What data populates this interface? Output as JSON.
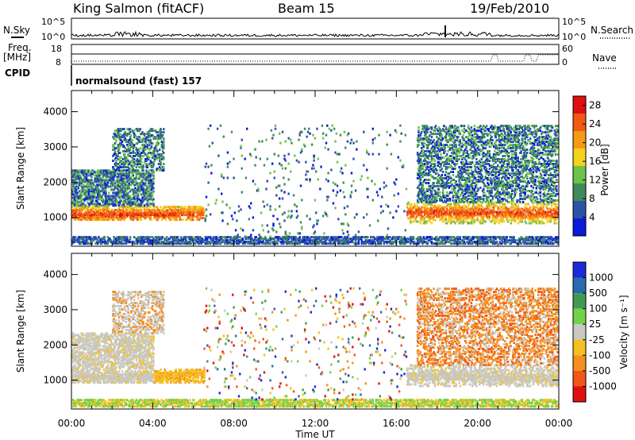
{
  "header": {
    "station": "King Salmon (fitACF)",
    "beam": "Beam 15",
    "date": "19/Feb/2010"
  },
  "strip_panels": {
    "nsky": {
      "label": "N.Sky",
      "ticks": [
        "10^5",
        "10^0"
      ]
    },
    "nsearch": {
      "label": "N.Search",
      "ticks": [
        "10^5",
        "10^0"
      ]
    },
    "freq": {
      "label_line1": "Freq.",
      "label_line2": "[MHz]",
      "ticks": [
        "18",
        "8"
      ]
    },
    "nave": {
      "label": "Nave",
      "ticks": [
        "60",
        "0"
      ]
    },
    "cpid": {
      "label": "CPID",
      "value": "normalsound (fast) 157"
    }
  },
  "chart_data": [
    {
      "type": "heatmap",
      "name": "power",
      "ylabel": "Slant Range [km]",
      "xlabel": "",
      "xlim": [
        "00:00",
        "00:00"
      ],
      "ylim": [
        180,
        4600
      ],
      "x_ticks": [
        "00:00",
        "04:00",
        "08:00",
        "12:00",
        "16:00",
        "20:00",
        "00:00"
      ],
      "y_ticks": [
        1000,
        2000,
        3000,
        4000
      ],
      "colorbar": {
        "label": "Power [dB]",
        "ticks": [
          4,
          8,
          12,
          16,
          20,
          24,
          28
        ],
        "range": [
          0,
          30
        ],
        "colors": [
          "#0a1ad8",
          "#2a52a8",
          "#3f8a5a",
          "#6cc24a",
          "#f2d21e",
          "#f59a16",
          "#f05a12",
          "#e01010"
        ]
      },
      "features": [
        {
          "desc": "strong echo band",
          "time_start": "00:00",
          "time_end": "06:30",
          "range_km": [
            850,
            1400
          ],
          "power_db": [
            12,
            30
          ]
        },
        {
          "desc": "echo band",
          "time_start": "17:00",
          "time_end": "24:00",
          "range_km": [
            800,
            1400
          ],
          "power_db": [
            8,
            24
          ]
        }
      ]
    },
    {
      "type": "heatmap",
      "name": "velocity",
      "ylabel": "Slant Range [km]",
      "xlabel": "Time UT",
      "xlim": [
        "00:00",
        "00:00"
      ],
      "ylim": [
        180,
        4600
      ],
      "x_ticks": [
        "00:00",
        "04:00",
        "08:00",
        "12:00",
        "16:00",
        "20:00",
        "00:00"
      ],
      "y_ticks": [
        1000,
        2000,
        3000,
        4000
      ],
      "colorbar": {
        "label": "Velocity [m s⁻¹]",
        "ticks": [
          "1000",
          "500",
          "100",
          "25",
          "-25",
          "-100",
          "-500",
          "-1000"
        ],
        "colors": [
          "#1a2ad8",
          "#2a6ab0",
          "#3f9a55",
          "#72d24a",
          "#c8c8c0",
          "#f5c020",
          "#f59020",
          "#f05818",
          "#e01010"
        ]
      }
    }
  ]
}
